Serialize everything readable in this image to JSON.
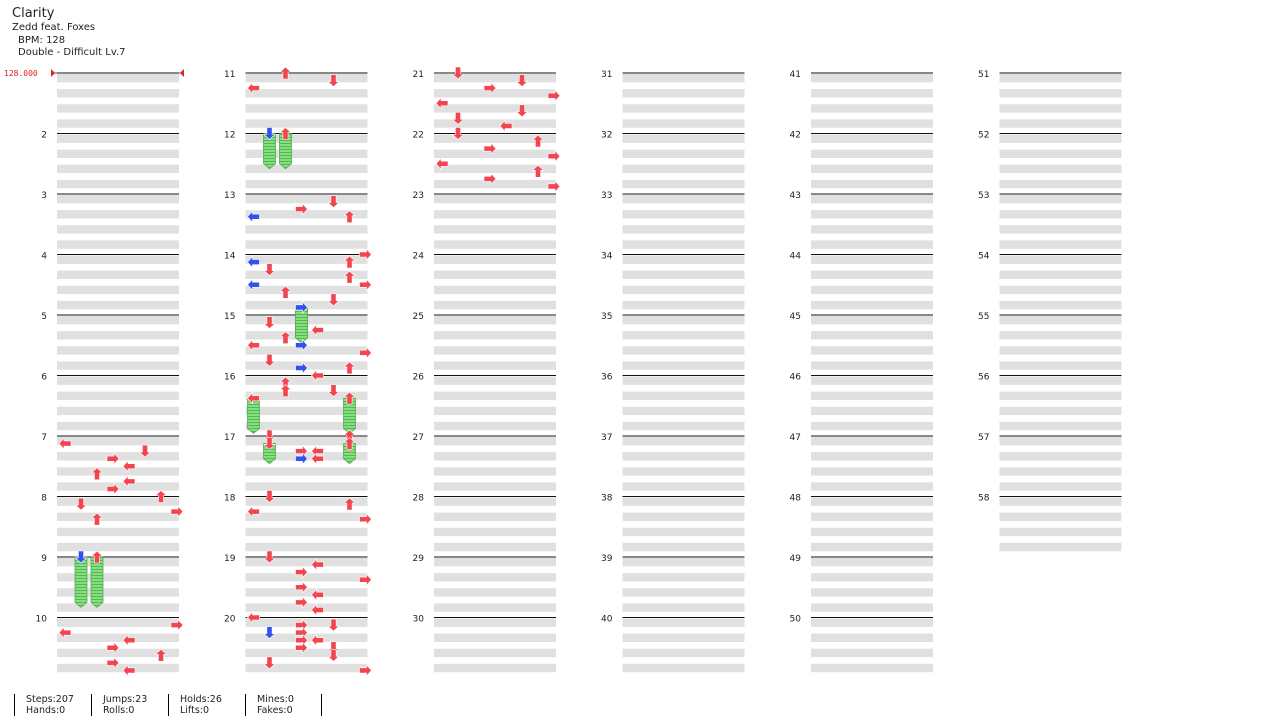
{
  "song": {
    "title": "Clarity",
    "artist": "Zedd feat. Foxes",
    "bpm": "BPM: 128",
    "difficulty": "Double - Difficult Lv.7"
  },
  "bpm_marker": "128.000",
  "colors": {
    "stripe": "#e0e0e0",
    "red_arrow": "#f2454f",
    "blue_arrow": "#3550ee",
    "hold": "#82e07e",
    "bpm_line": "#dd2222"
  },
  "measures_per_column": 10,
  "total_measures": 58,
  "notes": [
    {
      "m": 7,
      "s": 1,
      "d": "L",
      "c": "r"
    },
    {
      "m": 7,
      "s": 2,
      "d": "D",
      "c": "r"
    },
    {
      "m": 7,
      "s": 3,
      "d": "R",
      "c": "r"
    },
    {
      "m": 7,
      "s": 4,
      "d": "L",
      "c": "r"
    },
    {
      "m": 7,
      "s": 5,
      "d": "U",
      "c": "r"
    },
    {
      "m": 7,
      "s": 6,
      "d": "L",
      "c": "r"
    },
    {
      "m": 7,
      "s": 7,
      "d": "R",
      "c": "r"
    },
    {
      "m": 8,
      "s": 0,
      "d": "U",
      "c": "r"
    },
    {
      "m": 8,
      "s": 1,
      "d": "D",
      "c": "r"
    },
    {
      "m": 8,
      "s": 2,
      "d": "R",
      "c": "r"
    },
    {
      "m": 8,
      "s": 3,
      "d": "U",
      "c": "r"
    },
    {
      "m": 9,
      "s": 0,
      "d": "D",
      "c": "b",
      "hold": 6
    },
    {
      "m": 9,
      "s": 0,
      "d": "U",
      "c": "r",
      "hold": 6
    },
    {
      "m": 10,
      "s": 1,
      "d": "R",
      "c": "r"
    },
    {
      "m": 10,
      "s": 2,
      "d": "L",
      "c": "r"
    },
    {
      "m": 10,
      "s": 3,
      "d": "L",
      "c": "r"
    },
    {
      "m": 10,
      "s": 4,
      "d": "R",
      "c": "r"
    },
    {
      "m": 10,
      "s": 5,
      "d": "U",
      "c": "r"
    },
    {
      "m": 10,
      "s": 6,
      "d": "R",
      "c": "r"
    },
    {
      "m": 10,
      "s": 7,
      "d": "L",
      "c": "r"
    },
    {
      "m": 11,
      "s": 0,
      "d": "U",
      "c": "r"
    },
    {
      "m": 11,
      "s": 1,
      "d": "D",
      "c": "r"
    },
    {
      "m": 11,
      "s": 2,
      "d": "L",
      "c": "r"
    },
    {
      "m": 12,
      "s": 0,
      "d": "D",
      "c": "b",
      "hold": 4
    },
    {
      "m": 12,
      "s": 0,
      "d": "U",
      "c": "r",
      "hold": 4
    },
    {
      "m": 13,
      "s": 1,
      "d": "D",
      "c": "r"
    },
    {
      "m": 13,
      "s": 2,
      "d": "R",
      "c": "r"
    },
    {
      "m": 13,
      "s": 3,
      "d": "U",
      "c": "r"
    },
    {
      "m": 13,
      "s": 3,
      "d": "L",
      "c": "b"
    },
    {
      "m": 14,
      "s": 0,
      "d": "R",
      "c": "r"
    },
    {
      "m": 14,
      "s": 1,
      "d": "L",
      "c": "b"
    },
    {
      "m": 14,
      "s": 1,
      "d": "U",
      "c": "r"
    },
    {
      "m": 14,
      "s": 2,
      "d": "D",
      "c": "r"
    },
    {
      "m": 14,
      "s": 3,
      "d": "U",
      "c": "r"
    },
    {
      "m": 14,
      "s": 4,
      "d": "L",
      "c": "b"
    },
    {
      "m": 14,
      "s": 4,
      "d": "R",
      "c": "r"
    },
    {
      "m": 14,
      "s": 5,
      "d": "U",
      "c": "r"
    },
    {
      "m": 14,
      "s": 6,
      "d": "D",
      "c": "r"
    },
    {
      "m": 14,
      "s": 7,
      "d": "R",
      "c": "r",
      "hold": 4
    },
    {
      "m": 14,
      "s": 7,
      "d": "R",
      "c": "b",
      "hold": 4
    },
    {
      "m": 15,
      "s": 1,
      "d": "D",
      "c": "r"
    },
    {
      "m": 15,
      "s": 2,
      "d": "L",
      "c": "r"
    },
    {
      "m": 15,
      "s": 3,
      "d": "U",
      "c": "r"
    },
    {
      "m": 15,
      "s": 4,
      "d": "R",
      "c": "b"
    },
    {
      "m": 15,
      "s": 4,
      "d": "L",
      "c": "r"
    },
    {
      "m": 15,
      "s": 5,
      "d": "R",
      "c": "r"
    },
    {
      "m": 15,
      "s": 6,
      "d": "D",
      "c": "r"
    },
    {
      "m": 15,
      "s": 7,
      "d": "U",
      "c": "r"
    },
    {
      "m": 15,
      "s": 7,
      "d": "R",
      "c": "b"
    },
    {
      "m": 16,
      "s": 0,
      "d": "L",
      "c": "r"
    },
    {
      "m": 16,
      "s": 1,
      "d": "U",
      "c": "r"
    },
    {
      "m": 16,
      "s": 2,
      "d": "D",
      "c": "r"
    },
    {
      "m": 16,
      "s": 2,
      "d": "U",
      "c": "r"
    },
    {
      "m": 16,
      "s": 3,
      "d": "L",
      "c": "b"
    },
    {
      "m": 16,
      "s": 3,
      "d": "L",
      "c": "r",
      "hold": 4
    },
    {
      "m": 16,
      "s": 3,
      "d": "U",
      "c": "r",
      "hold": 4
    },
    {
      "m": 17,
      "s": 0,
      "d": "D",
      "c": "r"
    },
    {
      "m": 17,
      "s": 0,
      "d": "U",
      "c": "r"
    },
    {
      "m": 17,
      "s": 1,
      "d": "D",
      "c": "r",
      "hold": 2
    },
    {
      "m": 17,
      "s": 1,
      "d": "U",
      "c": "r",
      "hold": 2
    },
    {
      "m": 17,
      "s": 2,
      "d": "R",
      "c": "r"
    },
    {
      "m": 17,
      "s": 2,
      "d": "L",
      "c": "r"
    },
    {
      "m": 17,
      "s": 3,
      "d": "R",
      "c": "b"
    },
    {
      "m": 17,
      "s": 3,
      "d": "L",
      "c": "r"
    },
    {
      "m": 18,
      "s": 0,
      "d": "D",
      "c": "r"
    },
    {
      "m": 18,
      "s": 1,
      "d": "U",
      "c": "r"
    },
    {
      "m": 18,
      "s": 2,
      "d": "L",
      "c": "r"
    },
    {
      "m": 18,
      "s": 3,
      "d": "R",
      "c": "r"
    },
    {
      "m": 19,
      "s": 0,
      "d": "D",
      "c": "r"
    },
    {
      "m": 19,
      "s": 1,
      "d": "L",
      "c": "r"
    },
    {
      "m": 19,
      "s": 2,
      "d": "R",
      "c": "r"
    },
    {
      "m": 19,
      "s": 3,
      "d": "R",
      "c": "r"
    },
    {
      "m": 19,
      "s": 4,
      "d": "R",
      "c": "r"
    },
    {
      "m": 19,
      "s": 5,
      "d": "L",
      "c": "r"
    },
    {
      "m": 19,
      "s": 6,
      "d": "R",
      "c": "r"
    },
    {
      "m": 19,
      "s": 7,
      "d": "L",
      "c": "r"
    },
    {
      "m": 20,
      "s": 0,
      "d": "L",
      "c": "r"
    },
    {
      "m": 20,
      "s": 1,
      "d": "D",
      "c": "r"
    },
    {
      "m": 20,
      "s": 1,
      "d": "R",
      "c": "r"
    },
    {
      "m": 20,
      "s": 2,
      "d": "D",
      "c": "b"
    },
    {
      "m": 20,
      "s": 2,
      "d": "R",
      "c": "r"
    },
    {
      "m": 20,
      "s": 3,
      "d": "L",
      "c": "r"
    },
    {
      "m": 20,
      "s": 3,
      "d": "R",
      "c": "r"
    },
    {
      "m": 20,
      "s": 4,
      "d": "D",
      "c": "r"
    },
    {
      "m": 20,
      "s": 4,
      "d": "R",
      "c": "r"
    },
    {
      "m": 20,
      "s": 5,
      "d": "D",
      "c": "r"
    },
    {
      "m": 20,
      "s": 6,
      "d": "D",
      "c": "r"
    },
    {
      "m": 20,
      "s": 7,
      "d": "R",
      "c": "r"
    },
    {
      "m": 21,
      "s": 0,
      "d": "D",
      "c": "r"
    },
    {
      "m": 21,
      "s": 1,
      "d": "D",
      "c": "r"
    },
    {
      "m": 21,
      "s": 2,
      "d": "R",
      "c": "r"
    },
    {
      "m": 21,
      "s": 3,
      "d": "R",
      "c": "r"
    },
    {
      "m": 21,
      "s": 4,
      "d": "L",
      "c": "r"
    },
    {
      "m": 21,
      "s": 5,
      "d": "D",
      "c": "r"
    },
    {
      "m": 21,
      "s": 6,
      "d": "D",
      "c": "r"
    },
    {
      "m": 21,
      "s": 7,
      "d": "L",
      "c": "r"
    },
    {
      "m": 22,
      "s": 0,
      "d": "D",
      "c": "r"
    },
    {
      "m": 22,
      "s": 1,
      "d": "U",
      "c": "r"
    },
    {
      "m": 22,
      "s": 2,
      "d": "R",
      "c": "r"
    },
    {
      "m": 22,
      "s": 3,
      "d": "R",
      "c": "r"
    },
    {
      "m": 22,
      "s": 4,
      "d": "L",
      "c": "r"
    },
    {
      "m": 22,
      "s": 5,
      "d": "U",
      "c": "r"
    },
    {
      "m": 22,
      "s": 6,
      "d": "R",
      "c": "r"
    },
    {
      "m": 22,
      "s": 7,
      "d": "R",
      "c": "r"
    }
  ],
  "stats": [
    [
      "Steps:207",
      "Hands:0"
    ],
    [
      "Jumps:23",
      "Rolls:0"
    ],
    [
      "Holds:26",
      "Lifts:0"
    ],
    [
      "Mines:0",
      "Fakes:0"
    ]
  ]
}
